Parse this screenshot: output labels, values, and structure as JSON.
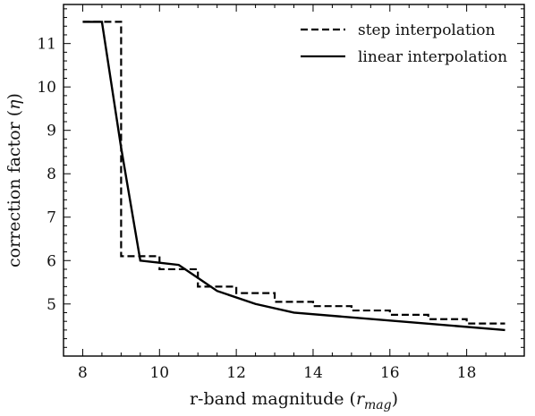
{
  "chart_data": {
    "type": "line",
    "title": "",
    "xlabel": "r-band magnitude (",
    "xlabel_math_base": "r",
    "xlabel_math_sub": "mag",
    "xlabel_close": ")",
    "ylabel": "correction factor (",
    "ylabel_math": "η",
    "ylabel_close": ")",
    "xlim": [
      7.5,
      19.5
    ],
    "ylim": [
      3.8,
      11.9
    ],
    "xticks": [
      8,
      10,
      12,
      14,
      16,
      18
    ],
    "yticks": [
      5,
      6,
      7,
      8,
      9,
      10,
      11
    ],
    "xminor_step": 0.5,
    "yminor_step": 0.2,
    "grid": false,
    "legend_position": "top-right",
    "series": [
      {
        "name": "step interpolation",
        "style": "dashed",
        "color": "#000000",
        "x": [
          8.0,
          9.0,
          9.0,
          10.0,
          10.0,
          11.0,
          11.0,
          12.0,
          12.0,
          13.0,
          13.0,
          14.0,
          14.0,
          15.0,
          15.0,
          16.0,
          16.0,
          17.0,
          17.0,
          18.0,
          18.0,
          19.0
        ],
        "y": [
          11.5,
          11.5,
          6.1,
          6.1,
          5.8,
          5.8,
          5.4,
          5.4,
          5.25,
          5.25,
          5.05,
          5.05,
          4.95,
          4.95,
          4.85,
          4.85,
          4.75,
          4.75,
          4.65,
          4.65,
          4.55,
          4.55
        ]
      },
      {
        "name": "linear interpolation",
        "style": "solid",
        "color": "#000000",
        "x": [
          8.0,
          8.5,
          9.0,
          9.5,
          10.0,
          10.5,
          11.0,
          11.5,
          12.5,
          13.5,
          19.0
        ],
        "y": [
          11.5,
          11.5,
          8.6,
          6.0,
          5.95,
          5.9,
          5.6,
          5.3,
          5.0,
          4.8,
          4.4
        ]
      }
    ]
  }
}
